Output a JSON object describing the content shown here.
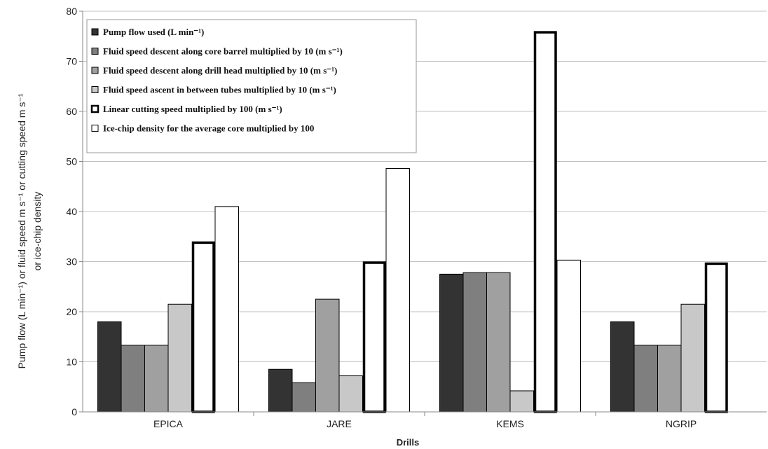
{
  "chart_data": {
    "type": "bar",
    "title": "",
    "xlabel": "Drills",
    "ylabel_line1": "Pump flow (L min⁻¹) or fluid speed m s⁻¹ or cutting speed m s⁻¹",
    "ylabel_line2": "or ice-chip density",
    "ylim": [
      0,
      80
    ],
    "yticks": [
      0,
      10,
      20,
      30,
      40,
      50,
      60,
      70,
      80
    ],
    "grid": true,
    "legend_position": "top-left",
    "categories": [
      "EPICA",
      "JARE",
      "KEMS",
      "NGRIP"
    ],
    "series": [
      {
        "name": "Pump flow used (L min⁻¹)",
        "values": [
          18,
          8.5,
          27.5,
          18
        ],
        "color": "#333333",
        "outline": "#000000",
        "thick": false
      },
      {
        "name": "Fluid speed descent along core barrel multiplied by 10 (m s⁻¹)",
        "values": [
          13.3,
          5.8,
          27.8,
          13.3
        ],
        "color": "#7f7f7f",
        "outline": "#000000",
        "thick": false
      },
      {
        "name": "Fluid speed descent along drill head multiplied by 10 (m s⁻¹)",
        "values": [
          13.3,
          22.5,
          27.8,
          13.3
        ],
        "color": "#a0a0a0",
        "outline": "#000000",
        "thick": false
      },
      {
        "name": "Fluid speed ascent in between tubes multiplied by 10 (m s⁻¹)",
        "values": [
          21.5,
          7.2,
          4.2,
          21.5
        ],
        "color": "#c8c8c8",
        "outline": "#000000",
        "thick": false
      },
      {
        "name": "Linear cutting speed multiplied by 100 (m s⁻¹)",
        "values": [
          34,
          30,
          76,
          29.8
        ],
        "color": "#ffffff",
        "outline": "#000000",
        "thick": true
      },
      {
        "name": "Ice-chip density for the average core multiplied by 100",
        "values": [
          41,
          48.6,
          30.3,
          0
        ],
        "color": "#ffffff",
        "outline": "#000000",
        "thick": false
      }
    ]
  }
}
